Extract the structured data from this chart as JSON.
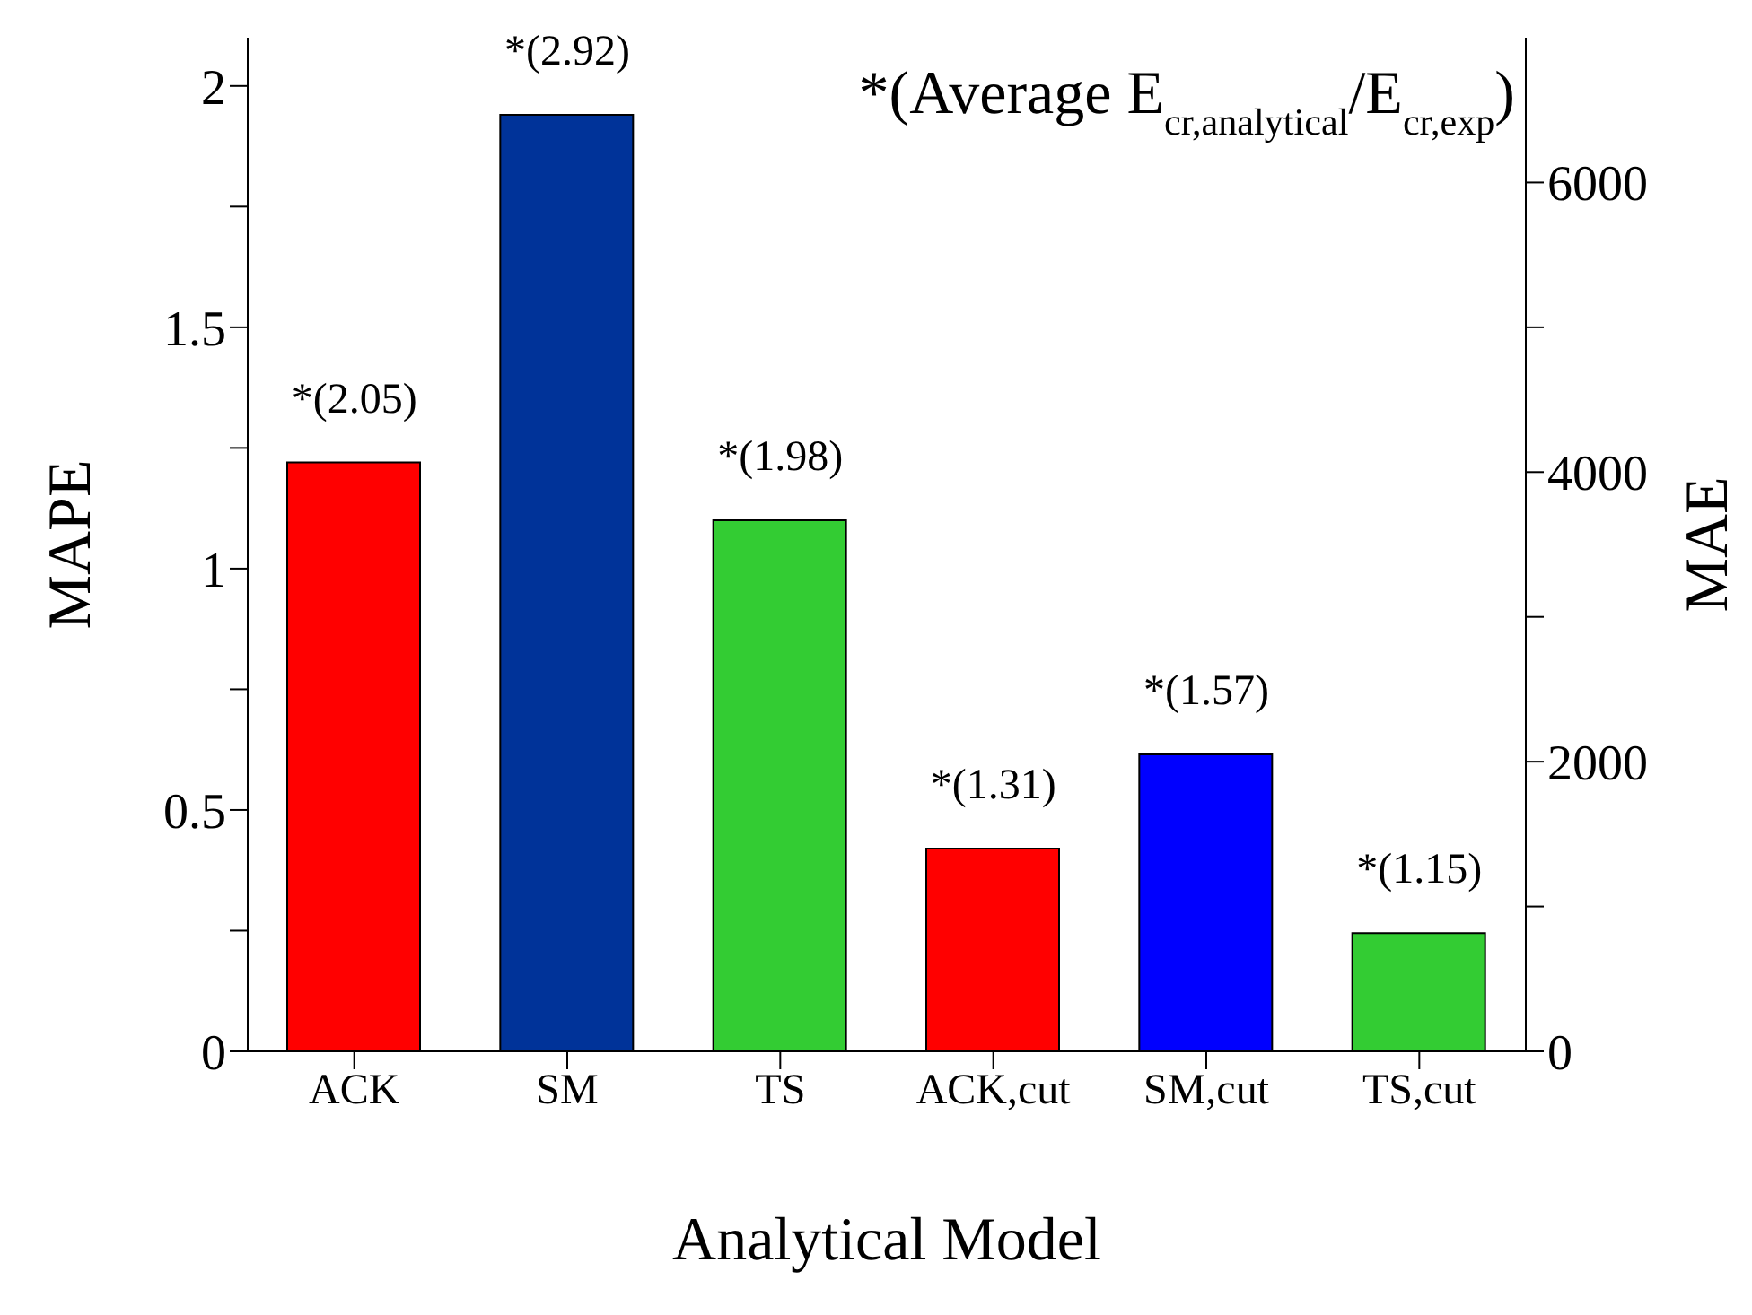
{
  "chart_data": {
    "type": "bar",
    "xlabel": "Analytical Model",
    "ylabel": "MAPE",
    "y2label": "MAE",
    "categories": [
      "ACK",
      "SM",
      "TS",
      "ACK,cut",
      "SM,cut",
      "TS,cut"
    ],
    "values": [
      1.22,
      1.94,
      1.1,
      0.42,
      0.615,
      0.245
    ],
    "colors": [
      "#ff0000",
      "#003399",
      "#33cc33",
      "#ff0000",
      "#0000ff",
      "#33cc33"
    ],
    "ylim": [
      0,
      2.1
    ],
    "yticks": [
      0,
      {
        "value": 0.25,
        "label": null
      },
      0.5,
      {
        "value": 0.75,
        "label": null
      },
      1,
      {
        "value": 1.25,
        "label": null
      },
      1.5,
      {
        "value": 1.75,
        "label": null
      },
      2
    ],
    "y2lim": [
      0,
      7000
    ],
    "y2ticks": [
      0,
      {
        "value": 1000,
        "label": null
      },
      2000,
      {
        "value": 3000,
        "label": null
      },
      4000,
      {
        "value": 5000,
        "label": null
      },
      6000
    ],
    "annotations": [
      "*(Average E$_{cr,analytical}$/E$_{cr,exp}$)",
      {
        "text": "*(2.05)",
        "x": "ACK",
        "y": 1.22
      },
      {
        "text": "*(2.92)",
        "x": "SM",
        "y": 1.94
      },
      {
        "text": "*(1.98)",
        "x": "TS",
        "y": 1.1
      },
      {
        "text": "*(1.31)",
        "x": "ACK,cut",
        "y": 0.42
      },
      {
        "text": "*(1.57)",
        "x": "SM,cut",
        "y": 0.615
      },
      {
        "text": "*(1.15)",
        "x": "TS,cut",
        "y": 0.245
      }
    ],
    "grid": false,
    "legend": false
  }
}
